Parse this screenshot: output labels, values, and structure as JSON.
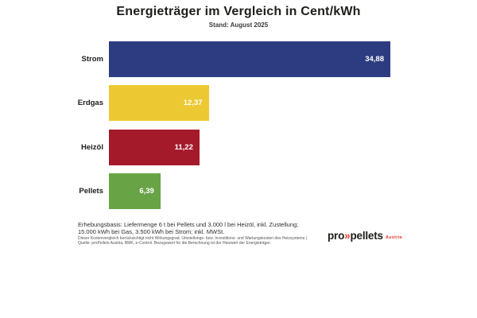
{
  "chart_data": {
    "type": "bar",
    "orientation": "horizontal",
    "title": "Energieträger im Vergleich in Cent/kWh",
    "subtitle": "Stand: August 2025",
    "unit": "Cent/kWh",
    "xlim": [
      0,
      34.88
    ],
    "grid": false,
    "legend": "none",
    "categories": [
      "Strom",
      "Erdgas",
      "Heizöl",
      "Pellets"
    ],
    "values": [
      34.88,
      12.37,
      11.22,
      6.39
    ],
    "value_labels": [
      "34,88",
      "12,37",
      "11,22",
      "6,39"
    ],
    "bar_colors": [
      "#2d3c80",
      "#ecc933",
      "#a41a2b",
      "#68a346"
    ],
    "value_label_color": "#ffffff"
  },
  "footer": {
    "basis_line1": "Erhebungsbasis: Liefermenge 6 t bei Pellets und 3.000 l bei Heizöl, inkl. Zustellung;",
    "basis_line2": "15.000 kWh bei Gas, 3.500 kWh bei Strom; inkl. MWSt.",
    "fine_line1": "Dieser Kostenvergleich berücksichtigt nicht Wirkungsgrad, Umstellungs- bzw. Investitions- und Wartungskosten des Heizsystems |",
    "fine_line2": "Quelle: proPellets Austria, BMK, e-Control. Bezugswert für die Berechnung ist der Heizwert der Energieträger."
  },
  "logo": {
    "part1": "pro",
    "chevrons": "»",
    "part2": "pellets",
    "region": "Austria",
    "accent_color": "#e63b2e"
  }
}
